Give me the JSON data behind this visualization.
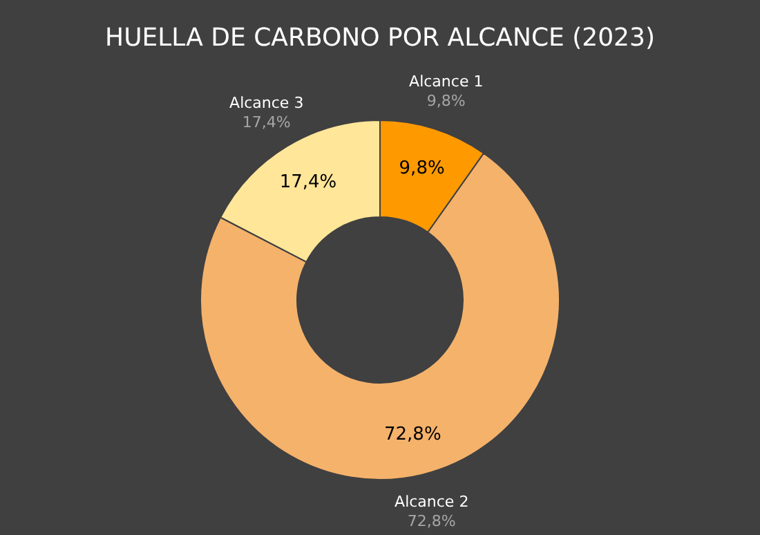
{
  "chart_data": {
    "type": "donut",
    "title": "HUELLA DE CARBONO POR ALCANCE (2023)",
    "categories": [
      "Alcance 1",
      "Alcance 2",
      "Alcance 3"
    ],
    "values": [
      9.8,
      72.8,
      17.4
    ],
    "value_labels": [
      "9,8%",
      "72,8%",
      "17,4%"
    ],
    "colors": [
      "#ff9900",
      "#f5b26b",
      "#ffe699"
    ],
    "legend": false
  }
}
